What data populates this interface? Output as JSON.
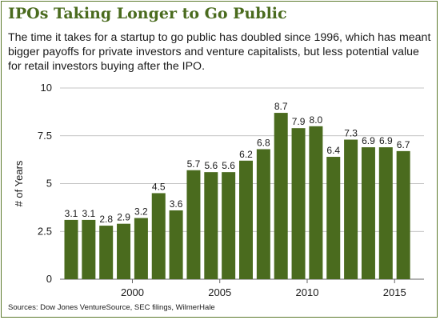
{
  "header": {
    "title": "IPOs Taking Longer to Go Public",
    "subtitle": "The time it takes for a startup to go public has doubled since 1996, which has meant bigger payoffs for private investors and venture capitalists, but less potential value for retail investors buying after the IPO."
  },
  "footer": {
    "source": "Sources: Dow Jones VentureSource, SEC filings, WilmerHale"
  },
  "colors": {
    "bar": "#4a6b1e",
    "title": "#4a6b1e",
    "grid": "#b0b0b0",
    "frame": "#5b7a2c"
  },
  "chart_data": {
    "type": "bar",
    "title": "IPOs Taking Longer to Go Public",
    "xlabel": "",
    "ylabel": "# of Years",
    "categories": [
      1996,
      1997,
      1998,
      1999,
      2000,
      2001,
      2002,
      2003,
      2004,
      2005,
      2006,
      2007,
      2008,
      2009,
      2010,
      2011,
      2012,
      2013,
      2014,
      2015
    ],
    "values": [
      3.1,
      3.1,
      2.8,
      2.9,
      3.2,
      4.5,
      3.6,
      5.7,
      5.6,
      5.6,
      6.2,
      6.8,
      8.7,
      7.9,
      8.0,
      6.4,
      7.3,
      6.9,
      6.9,
      6.7
    ],
    "data_labels": [
      "3.1",
      "3.1",
      "2.8",
      "2.9",
      "3.2",
      "4.5",
      "3.6",
      "5.7",
      "5.6",
      "5.6",
      "6.2",
      "6.8",
      "8.7",
      "7.9",
      "8.0",
      "6.4",
      "7.3",
      "6.9",
      "6.9",
      "6.7"
    ],
    "ylim": [
      0,
      10
    ],
    "yticks": [
      0,
      2.5,
      5,
      7.5,
      10
    ],
    "ytick_labels": [
      "0",
      "2.5",
      "5",
      "7.5",
      "10"
    ],
    "xtick_values": [
      2000,
      2005,
      2010,
      2015
    ],
    "xtick_labels": [
      "2000",
      "2005",
      "2010",
      "2015"
    ],
    "grid": true,
    "legend": false
  }
}
